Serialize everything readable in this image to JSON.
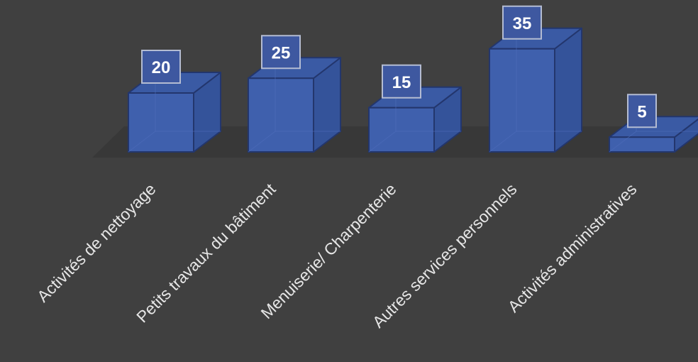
{
  "chart_data": {
    "type": "bar",
    "title": "",
    "xlabel": "",
    "ylabel": "",
    "categories": [
      "Activités de nettoyage",
      "Petits travaux du bâtiment",
      "Menuiserie/ Charpenterie",
      "Autres services personnels",
      "Activités administratives"
    ],
    "values": [
      20,
      25,
      15,
      35,
      5
    ],
    "ylim": [
      0,
      35
    ],
    "grid": false,
    "legend": "none",
    "data_labels": true,
    "style": "3d-column",
    "colors": {
      "background": "#404040",
      "floor": "#383838",
      "bar_front": "#3f60ad",
      "bar_side": "#34539a",
      "bar_top": "#3a5aa4",
      "bar_edge": "#23366d",
      "label_box_fill": "#3e58a0",
      "label_box_border": "#b4bcd2",
      "text": "#e6e6e6"
    }
  }
}
